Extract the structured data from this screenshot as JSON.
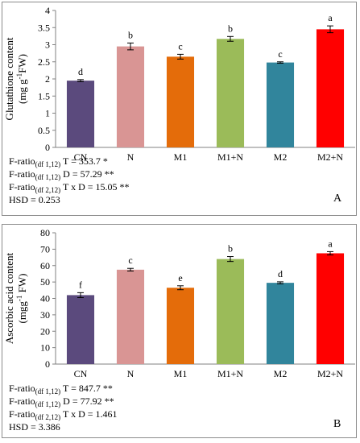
{
  "colors": {
    "CN": "#5b4a7d",
    "N": "#d99594",
    "M1": "#e46c0a",
    "M1+N": "#9bbb59",
    "M2": "#31859c",
    "M2+N": "#ff0000",
    "axis": "#808080",
    "border": "#8c8c8c"
  },
  "chart_data": [
    {
      "type": "bar",
      "panel_label": "A",
      "title": "",
      "ylabel_parts": [
        "Glutathione content",
        "(mg g",
        "-1",
        "FW)"
      ],
      "xlabel": "",
      "categories": [
        "CN",
        "N",
        "M1",
        "M1+N",
        "M2",
        "M2+N"
      ],
      "values": [
        1.95,
        2.95,
        2.65,
        3.17,
        2.48,
        3.45
      ],
      "errors": [
        0.03,
        0.1,
        0.07,
        0.07,
        0.02,
        0.1
      ],
      "letters": [
        "d",
        "b",
        "c",
        "b",
        "c",
        "a"
      ],
      "ylim": [
        0,
        4
      ],
      "yticks": [
        0,
        0.5,
        1,
        1.5,
        2,
        2.5,
        3,
        3.5,
        4
      ],
      "ytick_labels": [
        "0",
        "0.5",
        "1",
        "1.5",
        "2",
        "2.5",
        "3",
        "3.5",
        "4"
      ],
      "grid": false,
      "stats": [
        {
          "prefix": "F-ratio",
          "sub": "(df 1,12)",
          "rest": " T =  353.7 *"
        },
        {
          "prefix": "F-ratio",
          "sub": "(df 1,12)",
          "rest": " D = 57.29 **"
        },
        {
          "prefix": "F-ratio",
          "sub": "(df 2,12)",
          "rest": " T x D = 15.05 **"
        },
        {
          "prefix": "HSD = 0.253",
          "sub": "",
          "rest": ""
        }
      ]
    },
    {
      "type": "bar",
      "panel_label": "B",
      "title": "",
      "ylabel_parts": [
        "Ascorbic acid content",
        "(mgg",
        "-1",
        " FW)"
      ],
      "xlabel": "",
      "categories": [
        "CN",
        "N",
        "M1",
        "M1+N",
        "M2",
        "M2+N"
      ],
      "values": [
        42,
        57.5,
        46.5,
        64,
        49.5,
        67.5
      ],
      "errors": [
        1.5,
        0.8,
        1.2,
        1.5,
        0.6,
        1.0
      ],
      "letters": [
        "f",
        "c",
        "e",
        "b",
        "d",
        "a"
      ],
      "ylim": [
        0,
        80
      ],
      "yticks": [
        0,
        10,
        20,
        30,
        40,
        50,
        60,
        70,
        80
      ],
      "ytick_labels": [
        "0",
        "10",
        "20",
        "30",
        "40",
        "50",
        "60",
        "70",
        "80"
      ],
      "grid": false,
      "stats": [
        {
          "prefix": "F-ratio",
          "sub": "(df 1,12)",
          "rest": " T = 847.7 **"
        },
        {
          "prefix": "F-ratio",
          "sub": "(df 1,12)",
          "rest": " D = 77.92 **"
        },
        {
          "prefix": "F-ratio",
          "sub": "(df 2,12)",
          "rest": " T x D = 1.461"
        },
        {
          "prefix": "HSD = 3.386",
          "sub": "",
          "rest": ""
        }
      ]
    }
  ]
}
